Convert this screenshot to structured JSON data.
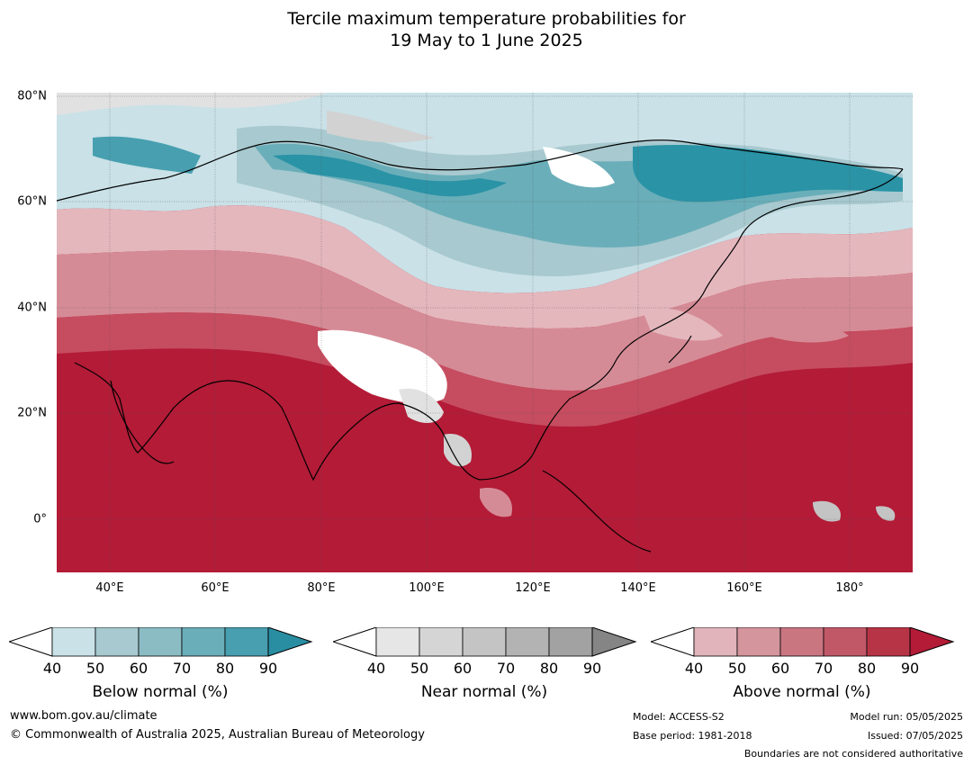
{
  "title": {
    "line1": "Tercile maximum temperature probabilities for",
    "line2": "19 May to 1 June 2025"
  },
  "map": {
    "region": "Asia",
    "lat_labels": [
      "80°N",
      "60°N",
      "40°N",
      "20°N",
      "0°"
    ],
    "lon_labels": [
      "40°E",
      "60°E",
      "80°E",
      "100°E",
      "120°E",
      "140°E",
      "160°E",
      "180°"
    ],
    "colors": {
      "above_dark": "#b31b37",
      "above_mid": "#c64c5f",
      "above_light": "#d58b96",
      "above_pale": "#e4b7bd",
      "below_dark": "#2a93a6",
      "below_mid": "#6aaeb9",
      "below_light": "#a7c9cf",
      "below_pale": "#c9e1e7",
      "near_pale": "#e1e1e1",
      "near_mid": "#c4c4c4"
    }
  },
  "legend": {
    "below": {
      "title": "Below normal (%)",
      "ticks": [
        "40",
        "50",
        "60",
        "70",
        "80",
        "90"
      ],
      "colors": [
        "#c9e1e7",
        "#a7c9cf",
        "#8bbcc4",
        "#6aaeb9",
        "#479fb0",
        "#2a8ea3"
      ]
    },
    "near": {
      "title": "Near normal (%)",
      "ticks": [
        "40",
        "50",
        "60",
        "70",
        "80",
        "90"
      ],
      "colors": [
        "#e6e6e6",
        "#d5d5d5",
        "#c4c4c4",
        "#b3b3b3",
        "#a2a2a2",
        "#858585"
      ]
    },
    "above": {
      "title": "Above normal (%)",
      "ticks": [
        "40",
        "50",
        "60",
        "70",
        "80",
        "90"
      ],
      "colors": [
        "#e0b4ba",
        "#d4959d",
        "#c97681",
        "#c15868",
        "#b73446",
        "#b31b37"
      ]
    }
  },
  "footer": {
    "website": "www.bom.gov.au/climate",
    "copyright": "© Commonwealth of Australia 2025, Australian Bureau of Meteorology",
    "model": "Model: ACCESS-S2",
    "base_period": "Base period: 1981-2018",
    "model_run": "Model run: 05/05/2025",
    "issued": "Issued: 07/05/2025",
    "disclaimer": "Boundaries are not considered authoritative"
  }
}
